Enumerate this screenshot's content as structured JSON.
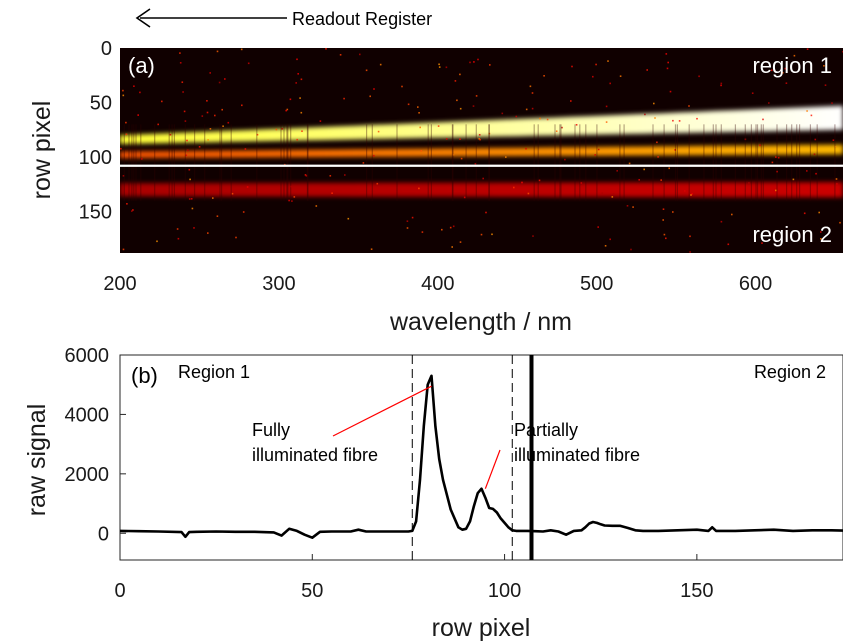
{
  "readout_label": "Readout Register",
  "colors": {
    "line": "#000000",
    "annotation": "#ff0000",
    "divider": "#ffffff"
  },
  "chart_data": [
    {
      "type": "heatmap",
      "panel_label": "(a)",
      "xlabel": "wavelength / nm",
      "ylabel": "row pixel",
      "xlim": [
        200,
        655
      ],
      "ylim": [
        0,
        188
      ],
      "y_inverted": true,
      "xticks": [
        200,
        300,
        400,
        500,
        600
      ],
      "yticks": [
        0,
        50,
        100,
        150
      ],
      "colormap": "hot",
      "divider_row": 108,
      "region_labels": [
        "region 1",
        "region 2"
      ],
      "bands": [
        {
          "name": "fully illuminated fibre",
          "row_start": [
            84,
            200
          ],
          "row_end": [
            64,
            655
          ],
          "width_start": 8,
          "width_end": 22,
          "intensity_start": 0.8,
          "intensity_end": 1.0
        },
        {
          "name": "partially illuminated fibre",
          "row_start": [
            98,
            200
          ],
          "row_end": [
            93,
            655
          ],
          "width_start": 6,
          "width_end": 9,
          "intensity_start": 0.5,
          "intensity_end": 0.65
        },
        {
          "name": "region 2 faint band",
          "row_start": [
            130,
            200
          ],
          "row_end": [
            130,
            655
          ],
          "width_start": 12,
          "width_end": 14,
          "intensity_start": 0.25,
          "intensity_end": 0.3
        }
      ]
    },
    {
      "type": "line",
      "panel_label": "(b)",
      "xlabel": "row pixel",
      "ylabel": "raw signal",
      "xlim": [
        0,
        188
      ],
      "ylim": [
        -900,
        6000
      ],
      "xticks": [
        0,
        50,
        100,
        150
      ],
      "yticks": [
        0,
        2000,
        4000,
        6000
      ],
      "region_labels": [
        "Region 1",
        "Region 2"
      ],
      "dashed_vlines": [
        76,
        102
      ],
      "solid_vline": 107,
      "annotations": [
        {
          "text": [
            "Fully",
            "illuminated fibre"
          ],
          "target": [
            81,
            4950
          ]
        },
        {
          "text": [
            "Partially",
            "illuminated fibre"
          ],
          "target": [
            95,
            1500
          ]
        }
      ],
      "series": [
        {
          "x": [
            0,
            5,
            10,
            16,
            17,
            18,
            20,
            25,
            30,
            35,
            40,
            42,
            44,
            46,
            48,
            50,
            52,
            55,
            60,
            62,
            64,
            70,
            75,
            76,
            77,
            78,
            79,
            80,
            81,
            82,
            83,
            84,
            86,
            88,
            89,
            90,
            91,
            92,
            93,
            94,
            95,
            96,
            97,
            98,
            99,
            100,
            101,
            102,
            103,
            104,
            106,
            108,
            110,
            112,
            114,
            116,
            118,
            120,
            121,
            122,
            123,
            124,
            125,
            126,
            128,
            130,
            132,
            134,
            136,
            140,
            145,
            150,
            153,
            154,
            155,
            160,
            165,
            170,
            175,
            180,
            185,
            188
          ],
          "y": [
            80,
            70,
            60,
            40,
            -120,
            40,
            50,
            60,
            50,
            50,
            30,
            -80,
            150,
            80,
            -50,
            -150,
            50,
            60,
            60,
            120,
            60,
            60,
            60,
            80,
            400,
            1800,
            3600,
            5000,
            5300,
            3600,
            2500,
            1800,
            800,
            200,
            120,
            150,
            400,
            900,
            1350,
            1500,
            1200,
            850,
            820,
            700,
            500,
            350,
            200,
            100,
            80,
            80,
            80,
            70,
            60,
            100,
            60,
            -50,
            80,
            100,
            200,
            330,
            380,
            350,
            300,
            260,
            250,
            250,
            180,
            100,
            80,
            80,
            100,
            120,
            80,
            200,
            80,
            80,
            100,
            120,
            80,
            100,
            100,
            90
          ]
        }
      ]
    }
  ]
}
